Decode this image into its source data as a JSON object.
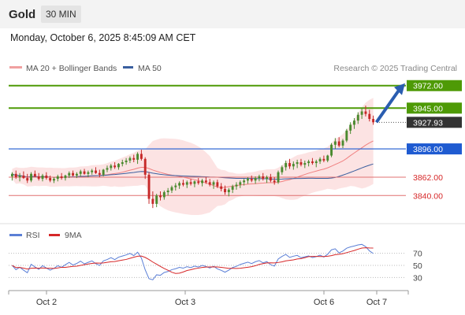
{
  "header": {
    "title": "Gold",
    "timeframe": "30 MIN"
  },
  "date_text": "Monday, October 6, 2025 8:45:09 AM CET",
  "legend": {
    "bb_label": "MA 20 + Bollinger Bands",
    "ma50_label": "MA 50"
  },
  "credit": "Research © 2025 Trading Central",
  "rsi_legend": {
    "rsi_label": "RSI",
    "ma_label": "9MA"
  },
  "colors": {
    "green": "#4e9a06",
    "blue": "#3a6bd6",
    "red": "#d62728",
    "bb": "#f0a0a0",
    "ma50": "#3a5f9f",
    "candle_up": "#4a8a2f",
    "candle_down": "#c62828"
  },
  "chart_data": [
    {
      "type": "candlestick",
      "y_range": [
        3810,
        3985
      ],
      "x_ticks": [
        "Oct 2",
        "Oct 3",
        "Oct 6",
        "Oct 7"
      ],
      "levels": [
        {
          "value": "3972.00",
          "role": "resistance",
          "color": "#4e9a06"
        },
        {
          "value": "3945.00",
          "role": "resistance",
          "color": "#4e9a06"
        },
        {
          "value": "3927.93",
          "role": "last",
          "color": "#333333"
        },
        {
          "value": "3896.00",
          "role": "pivot",
          "color": "#1f5bd1"
        },
        {
          "value": "3862.00",
          "role": "support",
          "color": "#d62728"
        },
        {
          "value": "3840.00",
          "role": "support",
          "color": "#d62728"
        }
      ],
      "projection": {
        "from": 3928,
        "to": 3972
      },
      "candles": [
        [
          3863,
          3868,
          3858,
          3866
        ],
        [
          3866,
          3870,
          3860,
          3862
        ],
        [
          3862,
          3867,
          3857,
          3864
        ],
        [
          3864,
          3869,
          3860,
          3861
        ],
        [
          3861,
          3866,
          3855,
          3858
        ],
        [
          3858,
          3868,
          3856,
          3866
        ],
        [
          3866,
          3870,
          3862,
          3863
        ],
        [
          3863,
          3867,
          3858,
          3860
        ],
        [
          3860,
          3866,
          3857,
          3864
        ],
        [
          3864,
          3868,
          3859,
          3861
        ],
        [
          3861,
          3864,
          3856,
          3858
        ],
        [
          3858,
          3862,
          3855,
          3860
        ],
        [
          3860,
          3865,
          3857,
          3863
        ],
        [
          3863,
          3867,
          3859,
          3861
        ],
        [
          3861,
          3865,
          3858,
          3864
        ],
        [
          3864,
          3869,
          3861,
          3867
        ],
        [
          3867,
          3870,
          3863,
          3864
        ],
        [
          3864,
          3868,
          3861,
          3866
        ],
        [
          3866,
          3871,
          3863,
          3869
        ],
        [
          3869,
          3872,
          3865,
          3866
        ],
        [
          3866,
          3870,
          3862,
          3868
        ],
        [
          3868,
          3872,
          3865,
          3870
        ],
        [
          3870,
          3874,
          3866,
          3867
        ],
        [
          3867,
          3871,
          3862,
          3865
        ],
        [
          3865,
          3872,
          3863,
          3871
        ],
        [
          3871,
          3876,
          3868,
          3873
        ],
        [
          3873,
          3878,
          3870,
          3876
        ],
        [
          3876,
          3880,
          3872,
          3874
        ],
        [
          3874,
          3879,
          3871,
          3878
        ],
        [
          3878,
          3883,
          3875,
          3880
        ],
        [
          3880,
          3885,
          3877,
          3882
        ],
        [
          3882,
          3887,
          3879,
          3885
        ],
        [
          3885,
          3889,
          3880,
          3883
        ],
        [
          3883,
          3892,
          3878,
          3890
        ],
        [
          3890,
          3895,
          3882,
          3884
        ],
        [
          3884,
          3886,
          3860,
          3865
        ],
        [
          3865,
          3868,
          3830,
          3836
        ],
        [
          3836,
          3845,
          3825,
          3830
        ],
        [
          3830,
          3842,
          3826,
          3840
        ],
        [
          3840,
          3845,
          3834,
          3838
        ],
        [
          3838,
          3846,
          3835,
          3844
        ],
        [
          3844,
          3849,
          3840,
          3846
        ],
        [
          3846,
          3852,
          3843,
          3850
        ],
        [
          3850,
          3855,
          3846,
          3852
        ],
        [
          3852,
          3857,
          3848,
          3855
        ],
        [
          3855,
          3859,
          3851,
          3853
        ],
        [
          3853,
          3858,
          3849,
          3856
        ],
        [
          3856,
          3860,
          3852,
          3854
        ],
        [
          3854,
          3858,
          3850,
          3857
        ],
        [
          3857,
          3861,
          3853,
          3855
        ],
        [
          3855,
          3860,
          3851,
          3858
        ],
        [
          3858,
          3862,
          3854,
          3856
        ],
        [
          3856,
          3860,
          3851,
          3853
        ],
        [
          3853,
          3858,
          3848,
          3856
        ],
        [
          3856,
          3859,
          3849,
          3851
        ],
        [
          3851,
          3855,
          3845,
          3848
        ],
        [
          3848,
          3852,
          3841,
          3844
        ],
        [
          3844,
          3849,
          3839,
          3847
        ],
        [
          3847,
          3853,
          3843,
          3851
        ],
        [
          3851,
          3856,
          3847,
          3853
        ],
        [
          3853,
          3858,
          3849,
          3856
        ],
        [
          3856,
          3860,
          3852,
          3858
        ],
        [
          3858,
          3862,
          3854,
          3860
        ],
        [
          3860,
          3864,
          3856,
          3858
        ],
        [
          3858,
          3863,
          3854,
          3861
        ],
        [
          3861,
          3865,
          3857,
          3863
        ],
        [
          3863,
          3867,
          3858,
          3860
        ],
        [
          3860,
          3864,
          3855,
          3862
        ],
        [
          3862,
          3866,
          3856,
          3858
        ],
        [
          3858,
          3862,
          3853,
          3856
        ],
        [
          3856,
          3870,
          3854,
          3868
        ],
        [
          3868,
          3876,
          3865,
          3874
        ],
        [
          3874,
          3882,
          3870,
          3879
        ],
        [
          3879,
          3884,
          3872,
          3875
        ],
        [
          3875,
          3881,
          3871,
          3878
        ],
        [
          3878,
          3883,
          3873,
          3880
        ],
        [
          3880,
          3884,
          3875,
          3877
        ],
        [
          3877,
          3882,
          3873,
          3879
        ],
        [
          3879,
          3883,
          3875,
          3881
        ],
        [
          3881,
          3885,
          3877,
          3879
        ],
        [
          3879,
          3883,
          3874,
          3881
        ],
        [
          3881,
          3886,
          3878,
          3884
        ],
        [
          3884,
          3888,
          3880,
          3882
        ],
        [
          3882,
          3889,
          3880,
          3888
        ],
        [
          3888,
          3903,
          3886,
          3901
        ],
        [
          3901,
          3909,
          3896,
          3905
        ],
        [
          3905,
          3910,
          3898,
          3900
        ],
        [
          3900,
          3908,
          3897,
          3906
        ],
        [
          3906,
          3920,
          3904,
          3918
        ],
        [
          3918,
          3928,
          3914,
          3925
        ],
        [
          3925,
          3933,
          3920,
          3930
        ],
        [
          3930,
          3940,
          3926,
          3937
        ],
        [
          3937,
          3945,
          3932,
          3941
        ],
        [
          3941,
          3948,
          3935,
          3938
        ],
        [
          3938,
          3943,
          3929,
          3932
        ],
        [
          3932,
          3936,
          3925,
          3928
        ]
      ]
    },
    {
      "type": "line",
      "name": "RSI",
      "y_ticks": [
        "70",
        "50",
        "30"
      ],
      "y_range": [
        15,
        85
      ]
    }
  ]
}
